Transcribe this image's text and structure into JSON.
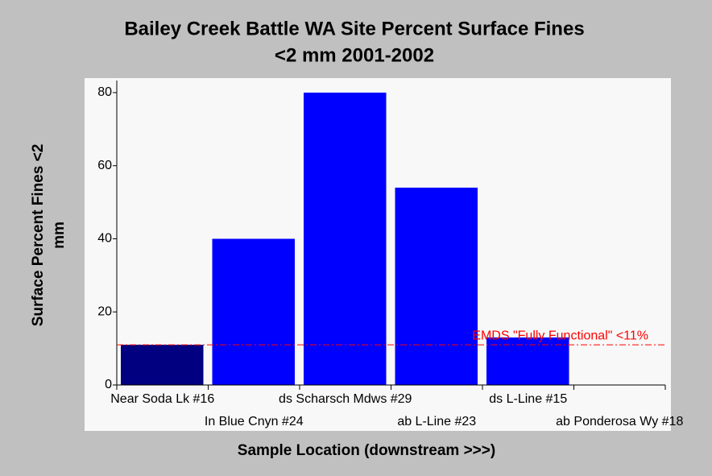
{
  "chart_data": {
    "type": "bar",
    "title": [
      "Bailey Creek Battle WA Site Percent Surface Fines",
      "<2 mm 2001-2002"
    ],
    "x_label": "Sample Location (downstream >>>)",
    "y_label": [
      "Surface Percent Fines <2",
      "mm"
    ],
    "categories": [
      "Near Soda Lk #16",
      "In Blue Cnyn #24",
      "ds Scharsch Mdws #29",
      "ab L-Line #23",
      "ds L-Line #15",
      "ab Ponderosa Wy #18"
    ],
    "values": [
      11,
      40,
      80,
      54,
      13,
      null
    ],
    "colors": [
      "#000080",
      "#0000ff",
      "#0000ff",
      "#0000ff",
      "#0000ff",
      "#0000ff"
    ],
    "ylim": [
      0,
      80
    ],
    "yticks": [
      0,
      20,
      40,
      60,
      80
    ],
    "reference_line": {
      "value": 11,
      "label": "EMDS \"Fully Functional\" <11%",
      "color": "#ff0000"
    }
  }
}
